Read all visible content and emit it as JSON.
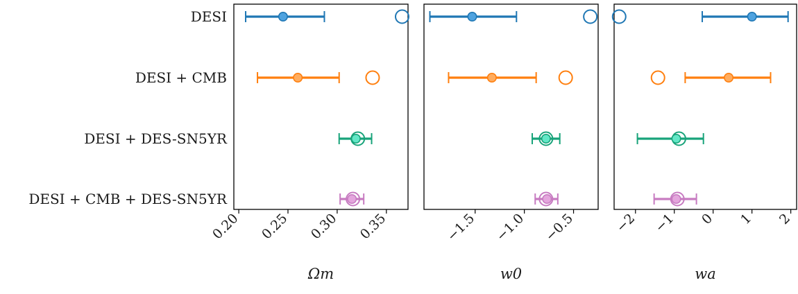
{
  "chart_data": {
    "type": "scatter",
    "rows": [
      "DESI",
      "DESI + CMB",
      "DESI + DES-SN5YR",
      "DESI + CMB + DES-SN5YR"
    ],
    "colors": [
      "#1f77b4",
      "#ff7f0e",
      "#18a37a",
      "#c77bc1"
    ],
    "fill_colors": [
      "#4fa3e0",
      "#ffac5e",
      "#62e7c6",
      "#e4a5dd"
    ],
    "panels": [
      {
        "xlabel": "Ωm",
        "xlim": [
          0.195,
          0.372
        ],
        "ticks": [
          0.2,
          0.25,
          0.3,
          0.35
        ],
        "tick_labels": [
          "0.20",
          "0.25",
          "0.30",
          "0.35"
        ],
        "points": [
          {
            "value": 0.245,
            "lo": 0.207,
            "hi": 0.287,
            "open": 0.366
          },
          {
            "value": 0.26,
            "lo": 0.219,
            "hi": 0.302,
            "open": 0.336
          },
          {
            "value": 0.319,
            "lo": 0.302,
            "hi": 0.335,
            "open": 0.321
          },
          {
            "value": 0.315,
            "lo": 0.303,
            "hi": 0.327,
            "open": 0.316
          }
        ]
      },
      {
        "xlabel": "w0",
        "xlim": [
          -2.02,
          -0.25
        ],
        "ticks": [
          -1.5,
          -1.0,
          -0.5
        ],
        "tick_labels": [
          "−1.5",
          "−1.0",
          "−0.5"
        ],
        "points": [
          {
            "value": -1.53,
            "lo": -1.96,
            "hi": -1.08,
            "open": -0.33
          },
          {
            "value": -1.33,
            "lo": -1.77,
            "hi": -0.88,
            "open": -0.58
          },
          {
            "value": -0.78,
            "lo": -0.92,
            "hi": -0.64,
            "open": -0.78
          },
          {
            "value": -0.77,
            "lo": -0.89,
            "hi": -0.66,
            "open": -0.78
          }
        ]
      },
      {
        "xlabel": "wa",
        "xlim": [
          -2.55,
          2.15
        ],
        "ticks": [
          -2,
          -1,
          0,
          1,
          2
        ],
        "tick_labels": [
          "−2",
          "−1",
          "0",
          "1",
          "2"
        ],
        "points": [
          {
            "value": 1.0,
            "lo": -0.28,
            "hi": 1.93,
            "open": -2.42
          },
          {
            "value": 0.4,
            "lo": -0.72,
            "hi": 1.48,
            "open": -1.42
          },
          {
            "value": -0.95,
            "lo": -1.95,
            "hi": -0.25,
            "open": -0.88
          },
          {
            "value": -0.95,
            "lo": -1.52,
            "hi": -0.43,
            "open": -0.92
          }
        ]
      }
    ]
  }
}
